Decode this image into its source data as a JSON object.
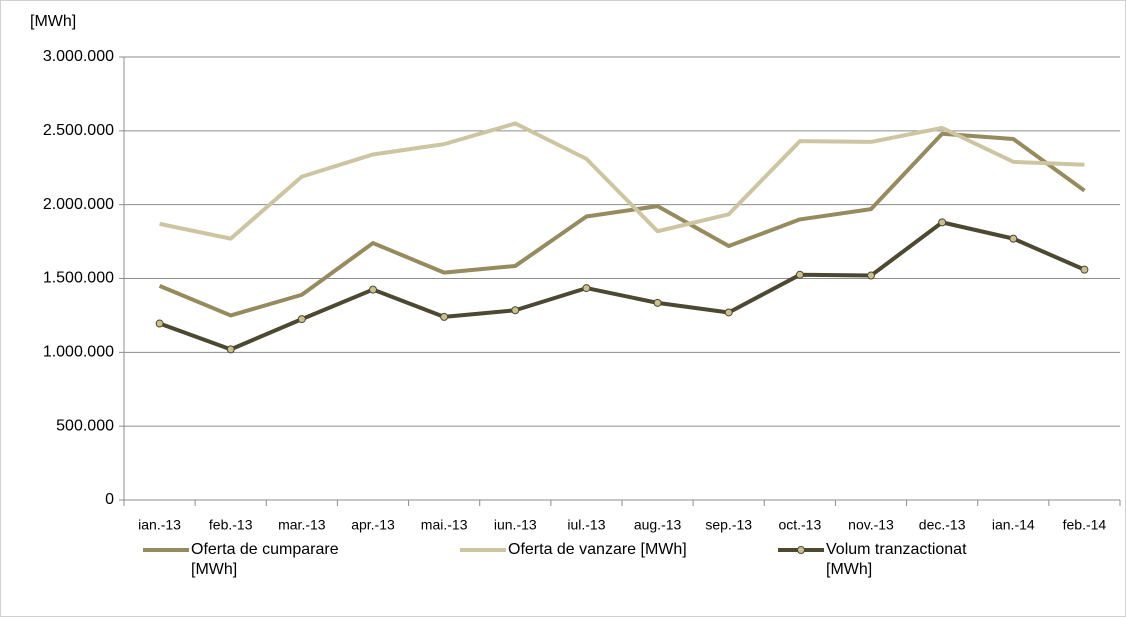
{
  "chart_data": {
    "type": "line",
    "y_label": "[MWh]",
    "categories": [
      "ian.-13",
      "feb.-13",
      "mar.-13",
      "apr.-13",
      "mai.-13",
      "iun.-13",
      "iul.-13",
      "aug.-13",
      "sep.-13",
      "oct.-13",
      "nov.-13",
      "dec.-13",
      "ian.-14",
      "feb.-14"
    ],
    "series": [
      {
        "name": "Oferta de cumparare [MWh]",
        "color": "#958b5e",
        "markers": false,
        "values": [
          1450000,
          1250000,
          1390000,
          1740000,
          1540000,
          1585000,
          1920000,
          1990000,
          1720000,
          1900000,
          1970000,
          2480000,
          2445000,
          2095000
        ]
      },
      {
        "name": "Oferta de vanzare [MWh]",
        "color": "#cdc5a2",
        "markers": false,
        "values": [
          1870000,
          1770000,
          2190000,
          2340000,
          2410000,
          2550000,
          2310000,
          1820000,
          1935000,
          2430000,
          2425000,
          2520000,
          2290000,
          2270000
        ]
      },
      {
        "name": "Volum tranzactionat [MWh]",
        "color": "#4d4832",
        "markers": true,
        "values": [
          1195000,
          1020000,
          1225000,
          1425000,
          1240000,
          1285000,
          1435000,
          1335000,
          1270000,
          1525000,
          1520000,
          1880000,
          1770000,
          1560000
        ]
      }
    ],
    "ylim": [
      0,
      3000000
    ],
    "yticks": [
      0,
      {
        "value": 500000,
        "label": "500.000"
      },
      {
        "value": 1000000,
        "label": "1.000.000"
      },
      {
        "value": 1500000,
        "label": "1.500.000"
      },
      {
        "value": 2000000,
        "label": "2.000.000"
      },
      {
        "value": 2500000,
        "label": "2.500.000"
      },
      {
        "value": 3000000,
        "label": "3.000.000"
      }
    ],
    "grid": true,
    "legend": "bottom"
  }
}
